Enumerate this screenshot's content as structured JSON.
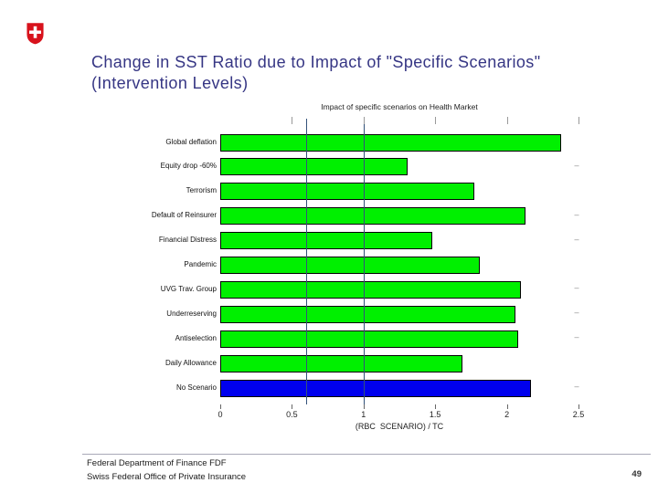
{
  "slide": {
    "title_line1": "Change in SST Ratio due to Impact of \"Specific Scenarios\"",
    "title_line2": "(Intervention Levels)",
    "title_color": "#363684",
    "footer_line1": "Federal Department of Finance FDF",
    "footer_line2": "Swiss Federal Office of Private Insurance",
    "page_number": "49"
  },
  "logo": {
    "name": "swiss-federal-emblem",
    "shield_color": "#d8121c",
    "cross_color": "#ffffff"
  },
  "chart_data": {
    "type": "bar",
    "orientation": "horizontal",
    "title": "Impact of specific scenarios on Health Market",
    "xlabel": "(RBC  SCENARIO) / TC",
    "categories": [
      "Global deflation",
      "Equity drop -60%",
      "Terrorism",
      "Default of Reinsurer",
      "Financial Distress",
      "Pandemic",
      "UVG Trav. Group",
      "Underreserving",
      "Antiselection",
      "Daily Allowance",
      "No Scenario"
    ],
    "values": [
      2.38,
      1.31,
      1.77,
      2.13,
      1.48,
      1.81,
      2.1,
      2.06,
      2.08,
      1.69,
      2.17
    ],
    "bar_colors": [
      "#00f000",
      "#00f000",
      "#00f000",
      "#00f000",
      "#00f000",
      "#00f000",
      "#00f000",
      "#00f000",
      "#00f000",
      "#00f000",
      "#0000ee"
    ],
    "right_dashes": [
      false,
      true,
      false,
      true,
      true,
      false,
      true,
      true,
      true,
      false,
      true
    ],
    "dash_marker": "–",
    "xlim": [
      0,
      2.5
    ],
    "xticks": [
      0,
      0.5,
      1,
      1.5,
      2,
      2.5
    ],
    "xtick_labels": [
      "0",
      "0.5",
      "1",
      "1.5",
      "2",
      "2.5"
    ],
    "reference_lines": [
      0.6,
      1.0
    ],
    "reference_line_color": "#33527a",
    "grid": false,
    "legend": "none",
    "bar_border_color": "#000000"
  }
}
